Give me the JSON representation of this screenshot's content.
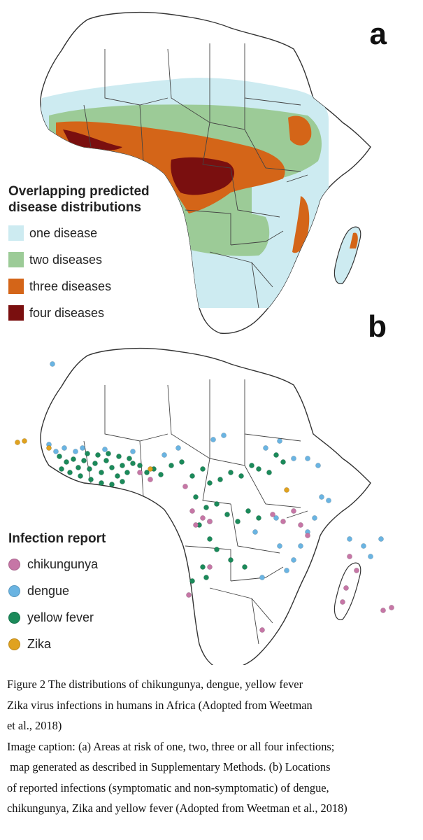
{
  "panel_a": {
    "letter": "a",
    "legend_title_line1": "Overlapping predicted",
    "legend_title_line2": "disease distributions",
    "legend": [
      {
        "label": "one disease",
        "color": "#cdebf1"
      },
      {
        "label": "two diseases",
        "color": "#9ccb97"
      },
      {
        "label": "three diseases",
        "color": "#d46518"
      },
      {
        "label": "four diseases",
        "color": "#7a0f0f"
      }
    ]
  },
  "panel_b": {
    "letter": "b",
    "legend_title": "Infection report",
    "legend": [
      {
        "label": "chikungunya",
        "color": "#c676a6"
      },
      {
        "label": "dengue",
        "color": "#6ab4e2"
      },
      {
        "label": "yellow fever",
        "color": "#1b8a5a"
      },
      {
        "label": "Zika",
        "color": "#e0a21f"
      }
    ]
  },
  "caption": {
    "line1": "Figure 2 The distributions of chikungunya, dengue, yellow fever",
    "line2": "Zika virus infections in humans in Africa (Adopted from Weetman",
    "line3": "et al., 2018)",
    "line4": "Image caption: (a) Areas at risk of one, two, three or all four infections;",
    "line5": " map generated as described in Supplementary Methods. (b) Locations",
    "line6": "of reported infections (symptomatic and non-symptomatic) of dengue,",
    "line7": "chikungunya, Zika and yellow fever (Adopted from Weetman et al., 2018)"
  }
}
